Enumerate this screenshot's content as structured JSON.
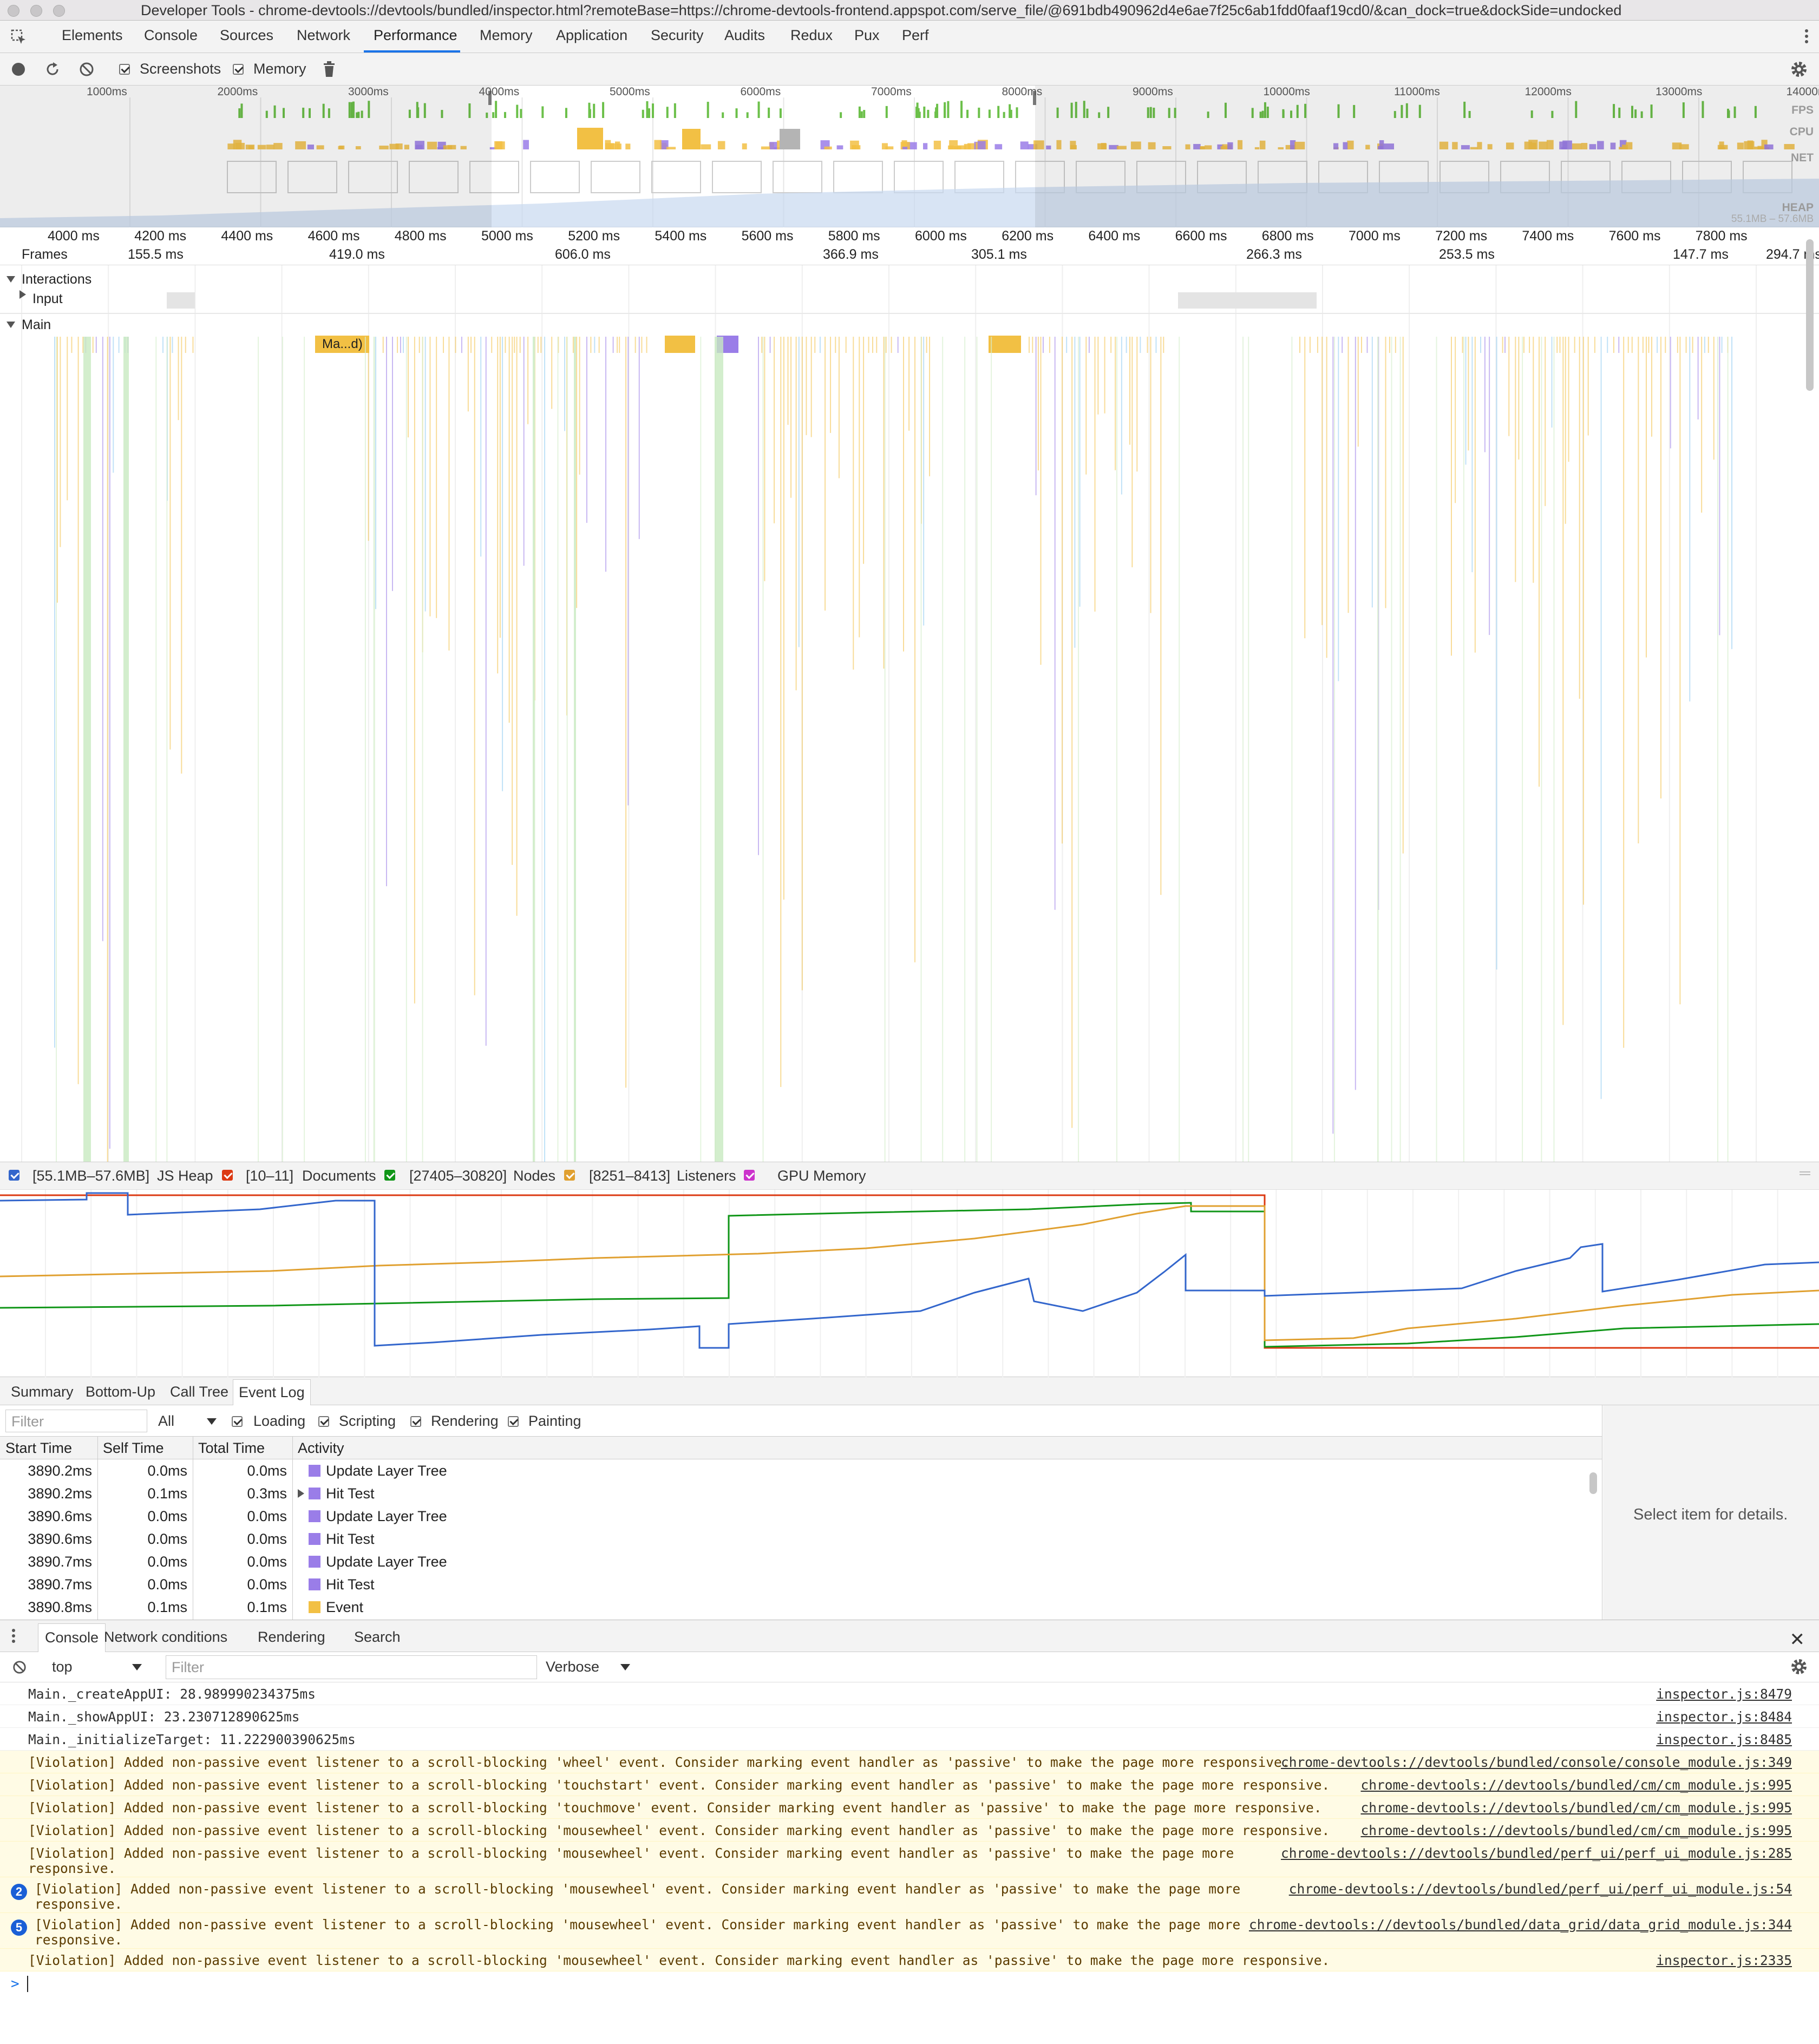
{
  "window": {
    "title": "Developer Tools - chrome-devtools://devtools/bundled/inspector.html?remoteBase=https://chrome-devtools-frontend.appspot.com/serve_file/@691bdb490962d4e6ae7f25c6ab1fdd0faaf19cd0/&can_dock=true&dockSide=undocked"
  },
  "tabs": [
    "Elements",
    "Console",
    "Sources",
    "Network",
    "Performance",
    "Memory",
    "Application",
    "Security",
    "Audits",
    "Redux",
    "Pux",
    "Perf"
  ],
  "active_tab": "Performance",
  "perf_toolbar": {
    "screenshots_label": "Screenshots",
    "screenshots_checked": true,
    "memory_label": "Memory",
    "memory_checked": true
  },
  "overview": {
    "ticks": [
      "1000ms",
      "2000ms",
      "3000ms",
      "4000ms",
      "5000ms",
      "6000ms",
      "7000ms",
      "8000ms",
      "9000ms",
      "10000ms",
      "11000ms",
      "12000ms",
      "13000ms",
      "14000ms"
    ],
    "tracks": [
      "FPS",
      "CPU",
      "NET",
      "HEAP"
    ],
    "heap_range": "55.1MB – 57.6MB"
  },
  "timeline": {
    "ruler_ticks": [
      "4000 ms",
      "4200 ms",
      "4400 ms",
      "4600 ms",
      "4800 ms",
      "5000 ms",
      "5200 ms",
      "5400 ms",
      "5600 ms",
      "5800 ms",
      "6000 ms",
      "6200 ms",
      "6400 ms",
      "6600 ms",
      "6800 ms",
      "7000 ms",
      "7200 ms",
      "7400 ms",
      "7600 ms",
      "7800 ms"
    ],
    "frames_label": "Frames",
    "frame_times": [
      "155.5 ms",
      "419.0 ms",
      "606.0 ms",
      "366.9 ms",
      "305.1 ms",
      "266.3 ms",
      "253.5 ms",
      "147.7 ms",
      "294.7 ms"
    ],
    "interactions_label": "Interactions",
    "input_label": "Input",
    "main_label": "Main",
    "task_label": "Ma...d)"
  },
  "counters": [
    {
      "range": "[55.1MB–57.6MB]",
      "name": "JS Heap",
      "color": "#3366cc",
      "checked": true
    },
    {
      "range": "[10–11]",
      "name": "Documents",
      "color": "#dc3912",
      "checked": true
    },
    {
      "range": "[27405–30820]",
      "name": "Nodes",
      "color": "#109618",
      "checked": true
    },
    {
      "range": "[8251–8413]",
      "name": "Listeners",
      "color": "#e0a030",
      "checked": true
    },
    {
      "range": "",
      "name": "GPU Memory",
      "color": "#cc33cc",
      "checked": true
    }
  ],
  "details_tabs": [
    "Summary",
    "Bottom-Up",
    "Call Tree",
    "Event Log"
  ],
  "active_details_tab": "Event Log",
  "event_filter": {
    "placeholder": "Filter",
    "duration": "All",
    "categories": [
      "Loading",
      "Scripting",
      "Rendering",
      "Painting"
    ]
  },
  "event_table": {
    "headers": [
      "Start Time",
      "Self Time",
      "Total Time",
      "Activity"
    ],
    "rows": [
      {
        "start": "3890.2ms",
        "self": "0.0ms",
        "total": "0.0ms",
        "activity": "Update Layer Tree",
        "color": "#9a7de8",
        "expandable": false
      },
      {
        "start": "3890.2ms",
        "self": "0.1ms",
        "total": "0.3ms",
        "activity": "Hit Test",
        "color": "#9a7de8",
        "expandable": true
      },
      {
        "start": "3890.6ms",
        "self": "0.0ms",
        "total": "0.0ms",
        "activity": "Update Layer Tree",
        "color": "#9a7de8",
        "expandable": false
      },
      {
        "start": "3890.6ms",
        "self": "0.0ms",
        "total": "0.0ms",
        "activity": "Hit Test",
        "color": "#9a7de8",
        "expandable": false
      },
      {
        "start": "3890.7ms",
        "self": "0.0ms",
        "total": "0.0ms",
        "activity": "Update Layer Tree",
        "color": "#9a7de8",
        "expandable": false
      },
      {
        "start": "3890.7ms",
        "self": "0.0ms",
        "total": "0.0ms",
        "activity": "Hit Test",
        "color": "#9a7de8",
        "expandable": false
      },
      {
        "start": "3890.8ms",
        "self": "0.1ms",
        "total": "0.1ms",
        "activity": "Event",
        "color": "#f2c044",
        "expandable": false
      }
    ]
  },
  "details_pane": {
    "empty_text": "Select item for details."
  },
  "drawer": {
    "tabs": [
      "Console",
      "Network conditions",
      "Rendering",
      "Search"
    ],
    "active": "Console",
    "context": "top",
    "filter_placeholder": "Filter",
    "level": "Verbose"
  },
  "console_messages": [
    {
      "text": "Main._createAppUI: 28.989990234375ms",
      "source": "inspector.js:8479",
      "type": "log",
      "badge": ""
    },
    {
      "text": "Main._showAppUI: 23.230712890625ms",
      "source": "inspector.js:8484",
      "type": "log",
      "badge": ""
    },
    {
      "text": "Main._initializeTarget: 11.222900390625ms",
      "source": "inspector.js:8485",
      "type": "log",
      "badge": ""
    },
    {
      "text": "[Violation] Added non-passive event listener to a scroll-blocking 'wheel' event. Consider marking event handler as 'passive' to make the page more responsive.",
      "source": "chrome-devtools://devtools/bundled/console/console_module.js:349",
      "type": "warn",
      "badge": ""
    },
    {
      "text": "[Violation] Added non-passive event listener to a scroll-blocking 'touchstart' event. Consider marking event handler as 'passive' to make the page more responsive.",
      "source": "chrome-devtools://devtools/bundled/cm/cm_module.js:995",
      "type": "warn",
      "badge": ""
    },
    {
      "text": "[Violation] Added non-passive event listener to a scroll-blocking 'touchmove' event. Consider marking event handler as 'passive' to make the page more responsive.",
      "source": "chrome-devtools://devtools/bundled/cm/cm_module.js:995",
      "type": "warn",
      "badge": ""
    },
    {
      "text": "[Violation] Added non-passive event listener to a scroll-blocking 'mousewheel' event. Consider marking event handler as 'passive' to make the page more responsive.",
      "source": "chrome-devtools://devtools/bundled/cm/cm_module.js:995",
      "type": "warn",
      "badge": ""
    },
    {
      "text": "[Violation] Added non-passive event listener to a scroll-blocking 'mousewheel' event. Consider marking event handler as 'passive' to make the page more\nresponsive.",
      "source": "chrome-devtools://devtools/bundled/perf_ui/perf_ui_module.js:285",
      "type": "warn",
      "badge": ""
    },
    {
      "text": "[Violation] Added non-passive event listener to a scroll-blocking 'mousewheel' event. Consider marking event handler as 'passive' to make the page more\nresponsive.",
      "source": "chrome-devtools://devtools/bundled/perf_ui/perf_ui_module.js:54",
      "type": "warn",
      "badge": "2"
    },
    {
      "text": "[Violation] Added non-passive event listener to a scroll-blocking 'mousewheel' event. Consider marking event handler as 'passive' to make the page more\nresponsive.",
      "source": "chrome-devtools://devtools/bundled/data_grid/data_grid_module.js:344",
      "type": "warn",
      "badge": "5"
    },
    {
      "text": "[Violation] Added non-passive event listener to a scroll-blocking 'mousewheel' event. Consider marking event handler as 'passive' to make the page more responsive.",
      "source": "inspector.js:2335",
      "type": "warn",
      "badge": ""
    }
  ],
  "console_prompt": ">"
}
